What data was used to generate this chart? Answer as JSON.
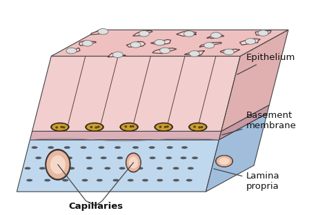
{
  "bg_color": "#ffffff",
  "epi_face_color": "#f2cece",
  "epi_top_color": "#eec0c0",
  "epi_right_color": "#e0b0b0",
  "bas_face_color": "#dbb0b8",
  "bas_top_color": "#cca0aa",
  "bas_right_color": "#c898a5",
  "lam_face_color": "#c0d8ee",
  "lam_top_color": "#b0cce0",
  "lam_right_color": "#a0bedc",
  "cell_border_color": "#604040",
  "cell_fill_color": "#f5d8d8",
  "nucleus_fill": "#e0e0e0",
  "nucleus_border": "#707070",
  "front_nuc_fill": "#c8a030",
  "front_nuc_border": "#704000",
  "capillary_outer": "#e8b8a0",
  "capillary_inner": "#f5d8c8",
  "connective_dot": "#303030",
  "label_color": "#111111",
  "label_fontsize": 9.5,
  "arrow_color": "#444444",
  "block_edge_color": "#404040",
  "labels": {
    "epithelium": "Epithelium",
    "basement": "Basement\nmembrane",
    "lamina": "Lamina\npropria",
    "capillaries": "Capillaries"
  }
}
